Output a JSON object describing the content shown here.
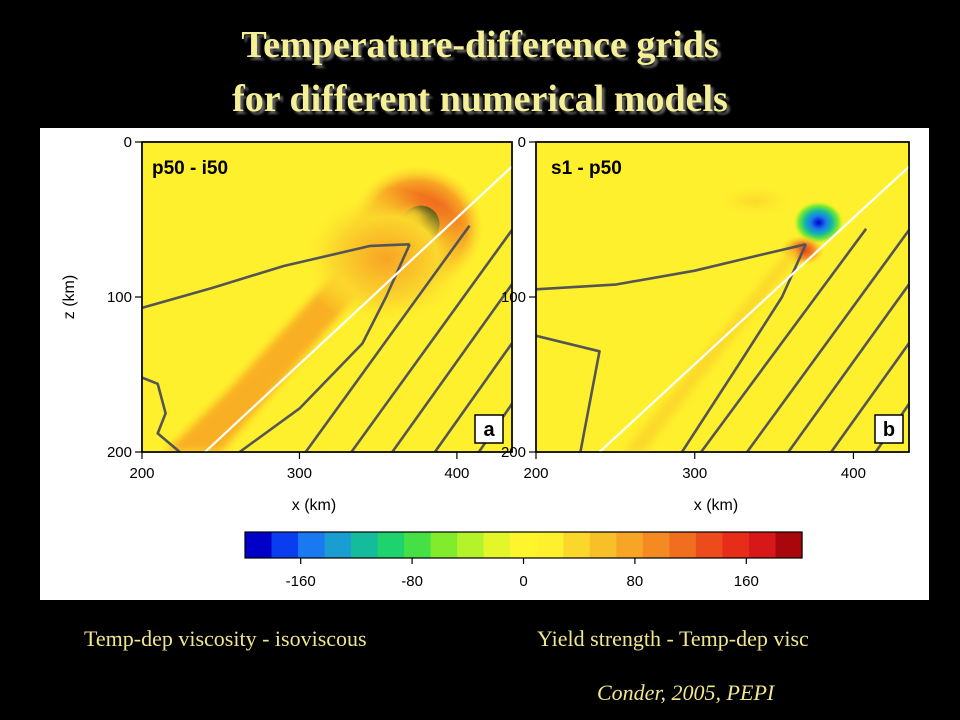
{
  "slide": {
    "title_line1": "Temperature-difference grids",
    "title_line2": "for different numerical models",
    "caption_left": "Temp-dep viscosity - isoviscous",
    "caption_right": "Yield strength - Temp-dep visc",
    "citation": "Conder, 2005, PEPI"
  },
  "chart_data": [
    {
      "type": "heatmap",
      "title": "p50 - i50",
      "panel_label": "a",
      "xlabel": "x (km)",
      "ylabel": "z (km)",
      "xlim": [
        200,
        435
      ],
      "ylim": [
        200,
        0
      ],
      "xticks": [
        200,
        300,
        400
      ],
      "yticks": [
        0,
        100,
        200
      ],
      "features": [
        {
          "kind": "hot-anomaly",
          "center": [
            375,
            55
          ],
          "peak_value": 200
        },
        {
          "kind": "warm-band",
          "along": "slab-interface",
          "value": 60
        }
      ],
      "contours": [
        {
          "points": [
            [
              200,
              107
            ],
            [
              245,
              94
            ],
            [
              290,
              80
            ],
            [
              345,
              67
            ],
            [
              370,
              66
            ]
          ]
        },
        {
          "points": [
            [
              370,
              66
            ],
            [
              355,
              100
            ],
            [
              340,
              130
            ],
            [
              300,
              172
            ],
            [
              262,
              200
            ]
          ]
        },
        {
          "points": [
            [
              200,
              152
            ],
            [
              210,
              156
            ],
            [
              215,
              175
            ],
            [
              210,
              188
            ],
            [
              224,
              200
            ]
          ]
        },
        {
          "points": [
            [
              304,
              200
            ],
            [
              408,
              54
            ]
          ]
        },
        {
          "points": [
            [
              333,
              200
            ],
            [
              437,
              54
            ]
          ]
        },
        {
          "points": [
            [
              359,
              200
            ],
            [
              437,
              89
            ]
          ]
        },
        {
          "points": [
            [
              386,
              200
            ],
            [
              437,
              127
            ]
          ]
        },
        {
          "points": [
            [
              414,
              200
            ],
            [
              437,
              166
            ]
          ]
        }
      ],
      "slab_line": {
        "points": [
          [
            240,
            200
          ],
          [
            437,
            14
          ]
        ]
      }
    },
    {
      "type": "heatmap",
      "title": "s1 - p50",
      "panel_label": "b",
      "xlabel": "x (km)",
      "ylabel": "",
      "xlim": [
        200,
        435
      ],
      "ylim": [
        200,
        0
      ],
      "xticks": [
        200,
        300,
        400
      ],
      "yticks": [
        0,
        100,
        200
      ],
      "features": [
        {
          "kind": "cold-anomaly",
          "center": [
            378,
            52
          ],
          "peak_value": -200
        },
        {
          "kind": "hot-anomaly",
          "center": [
            368,
            70
          ],
          "peak_value": 140
        },
        {
          "kind": "weak-warm",
          "center": [
            338,
            38
          ],
          "value": 30
        }
      ],
      "contours": [
        {
          "points": [
            [
              200,
              95
            ],
            [
              250,
              92
            ],
            [
              300,
              83
            ],
            [
              345,
              72
            ],
            [
              370,
              66
            ]
          ]
        },
        {
          "points": [
            [
              370,
              66
            ],
            [
              355,
              100
            ],
            [
              330,
              140
            ],
            [
              292,
              200
            ]
          ]
        },
        {
          "points": [
            [
              200,
              125
            ],
            [
              240,
              135
            ],
            [
              228,
              200
            ]
          ]
        },
        {
          "points": [
            [
              304,
              200
            ],
            [
              408,
              56
            ]
          ]
        },
        {
          "points": [
            [
              333,
              200
            ],
            [
              437,
              54
            ]
          ]
        },
        {
          "points": [
            [
              359,
              200
            ],
            [
              437,
              89
            ]
          ]
        },
        {
          "points": [
            [
              386,
              200
            ],
            [
              437,
              127
            ]
          ]
        },
        {
          "points": [
            [
              414,
              200
            ],
            [
              437,
              166
            ]
          ]
        }
      ],
      "slab_line": {
        "points": [
          [
            240,
            200
          ],
          [
            437,
            14
          ]
        ]
      }
    }
  ],
  "colorbar": {
    "ticks": [
      -160,
      -80,
      0,
      80,
      160
    ],
    "range": [
      -200,
      200
    ],
    "colors": [
      "#0000c8",
      "#0a3cf0",
      "#1a78f0",
      "#1a9ed2",
      "#14bc9c",
      "#1ed26e",
      "#46e046",
      "#82ec2c",
      "#b4f22a",
      "#e2f62a",
      "#fff52c",
      "#fff02d",
      "#fbd72c",
      "#f8c028",
      "#f8a424",
      "#f48a22",
      "#f06e1e",
      "#ec4c1c",
      "#e82c1a",
      "#d81818",
      "#a8080c"
    ]
  }
}
